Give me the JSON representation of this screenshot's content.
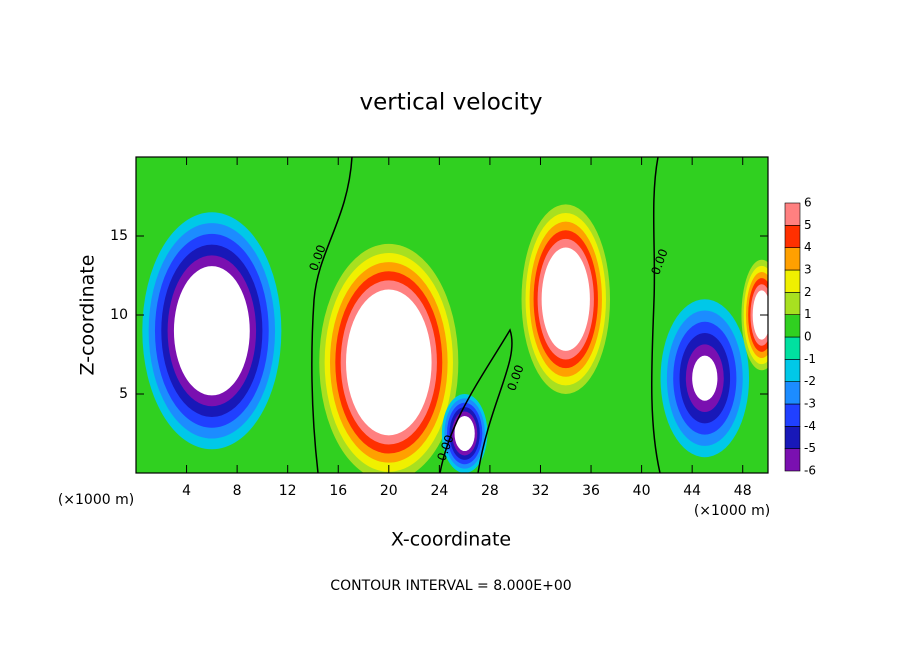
{
  "chart_data": {
    "type": "contour",
    "title": "vertical velocity",
    "x_label": "X-coordinate",
    "y_label": "Z-coordinate",
    "x_unit": "(×1000 m)",
    "y_unit": "(×1000 m)",
    "footer": "CONTOUR INTERVAL = 8.000E+00",
    "contour_labels": [
      "0.00",
      "0.00",
      "0.00",
      "0.00"
    ],
    "xlim": [
      0,
      50
    ],
    "xticks": [
      4,
      8,
      12,
      16,
      20,
      24,
      28,
      32,
      36,
      40,
      44,
      48
    ],
    "ylim": [
      0,
      20
    ],
    "yticks": [
      5,
      10,
      15
    ],
    "background": 0.5,
    "blobs": [
      {
        "x": 6,
        "z": 9,
        "rx": 5.5,
        "rz": 7.5,
        "value": -10
      },
      {
        "x": 20,
        "z": 7,
        "rx": 5.5,
        "rz": 7.5,
        "value": 12
      },
      {
        "x": 34,
        "z": 11,
        "rx": 3.5,
        "rz": 6,
        "value": 10
      },
      {
        "x": 26,
        "z": 2.5,
        "rx": 1.8,
        "rz": 2.5,
        "value": -8
      },
      {
        "x": 45,
        "z": 6,
        "rx": 3.5,
        "rz": 5,
        "value": -6
      },
      {
        "x": 49.5,
        "z": 10,
        "rx": 1.6,
        "rz": 3.5,
        "value": 8
      }
    ],
    "colorbar": {
      "ticks": [
        -6,
        -5,
        -4,
        -3,
        -2,
        -1,
        0,
        1,
        2,
        3,
        4,
        5,
        6
      ],
      "colors": [
        "#7a10b0",
        "#1818b8",
        "#2040ff",
        "#1c8cff",
        "#00c8e8",
        "#00e0a0",
        "#30d020",
        "#a8e020",
        "#f0f000",
        "#ffa000",
        "#ff3000",
        "#ff8080"
      ]
    }
  }
}
